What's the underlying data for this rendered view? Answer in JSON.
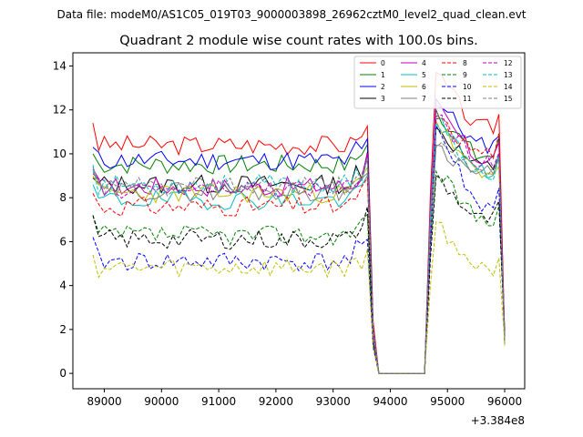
{
  "chart_data": {
    "type": "line",
    "suptitle": "Data file: modeM0/AS1C05_019T03_9000003898_26962cztM0_level2_quad_clean.evt",
    "title": "Quadrant 2 module wise count rates with 100.0s bins.",
    "xlabel": "",
    "ylabel": "",
    "x_offset_label": "+3.384e8",
    "xlim": [
      88450,
      96350
    ],
    "ylim": [
      -0.7,
      14.6
    ],
    "x_ticks": [
      89000,
      90000,
      91000,
      92000,
      93000,
      94000,
      95000,
      96000
    ],
    "x_tick_labels": [
      "89000",
      "90000",
      "91000",
      "92000",
      "93000",
      "94000",
      "95000",
      "96000"
    ],
    "y_ticks": [
      0,
      2,
      4,
      6,
      8,
      10,
      12,
      14
    ],
    "y_tick_labels": [
      "0",
      "2",
      "4",
      "6",
      "8",
      "10",
      "12",
      "14"
    ],
    "legend_position": "top-right",
    "segments": [
      {
        "x_start": 88800,
        "x_end": 93600
      },
      {
        "x_end": 94600
      },
      {
        "x_start": 94700,
        "x_end": 96000
      }
    ],
    "series": [
      {
        "name": "0",
        "color": "#ff0000",
        "dash": "solid",
        "base1": 10.4,
        "start1": 11.4,
        "base2": 11.8,
        "peak2": 13.7,
        "seed": 3
      },
      {
        "name": "1",
        "color": "#008000",
        "dash": "solid",
        "base1": 9.5,
        "start1": 10.0,
        "base2": 10.5,
        "peak2": 12.0,
        "seed": 7
      },
      {
        "name": "2",
        "color": "#0000ff",
        "dash": "solid",
        "base1": 9.7,
        "start1": 10.3,
        "base2": 11.0,
        "peak2": 12.5,
        "seed": 11
      },
      {
        "name": "3",
        "color": "#000000",
        "dash": "solid",
        "base1": 8.6,
        "start1": 8.9,
        "base2": 10.0,
        "peak2": 11.2,
        "seed": 13
      },
      {
        "name": "4",
        "color": "#bf00bf",
        "dash": "solid",
        "base1": 8.5,
        "start1": 9.3,
        "base2": 10.4,
        "peak2": 12.2,
        "seed": 17
      },
      {
        "name": "5",
        "color": "#00bfbf",
        "dash": "solid",
        "base1": 7.9,
        "start1": 8.6,
        "base2": 9.8,
        "peak2": 11.6,
        "seed": 19
      },
      {
        "name": "6",
        "color": "#bfbf00",
        "dash": "solid",
        "base1": 8.2,
        "start1": 9.0,
        "base2": 9.6,
        "peak2": 11.5,
        "seed": 23
      },
      {
        "name": "7",
        "color": "#808080",
        "dash": "solid",
        "base1": 8.3,
        "start1": 9.4,
        "base2": 9.7,
        "peak2": 10.4,
        "seed": 29
      },
      {
        "name": "8",
        "color": "#ff0000",
        "dash": "dashed",
        "base1": 7.6,
        "start1": 8.2,
        "base2": 10.7,
        "peak2": 11.6,
        "seed": 31
      },
      {
        "name": "9",
        "color": "#008000",
        "dash": "dashed",
        "base1": 6.3,
        "start1": 7.2,
        "base2": 7.7,
        "peak2": 9.2,
        "seed": 37
      },
      {
        "name": "10",
        "color": "#0000ff",
        "dash": "dashed",
        "base1": 5.1,
        "start1": 6.2,
        "base2": 8.3,
        "peak2": 11.3,
        "seed": 41
      },
      {
        "name": "11",
        "color": "#000000",
        "dash": "dashed",
        "base1": 6.1,
        "start1": 7.2,
        "base2": 7.6,
        "peak2": 9.0,
        "seed": 43
      },
      {
        "name": "12",
        "color": "#bf00bf",
        "dash": "dashed",
        "base1": 8.4,
        "start1": 9.1,
        "base2": 10.2,
        "peak2": 11.7,
        "seed": 47
      },
      {
        "name": "13",
        "color": "#00bfbf",
        "dash": "dashed",
        "base1": 8.6,
        "start1": 9.5,
        "base2": 9.7,
        "peak2": 11.4,
        "seed": 53
      },
      {
        "name": "14",
        "color": "#bfbf00",
        "dash": "dashed",
        "base1": 4.8,
        "start1": 5.4,
        "base2": 5.4,
        "peak2": 6.9,
        "seed": 59
      },
      {
        "name": "15",
        "color": "#808080",
        "dash": "dashed",
        "base1": 8.5,
        "start1": 9.2,
        "base2": 9.8,
        "peak2": 10.3,
        "seed": 61
      }
    ]
  }
}
